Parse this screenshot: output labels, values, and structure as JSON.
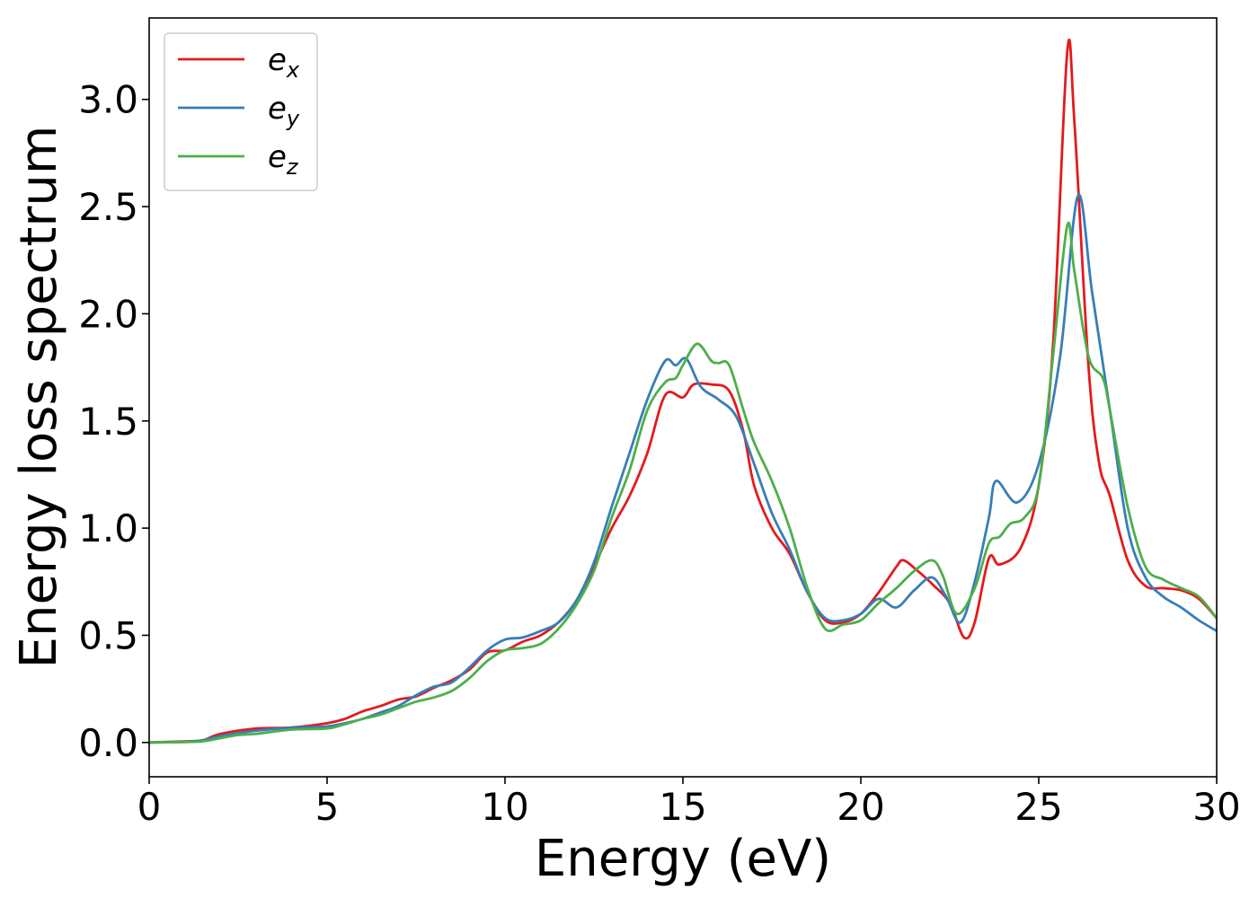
{
  "chart_data": {
    "type": "line",
    "title": "",
    "xlabel": "Energy (eV)",
    "ylabel": "Energy loss spectrum",
    "xlim": [
      0,
      30
    ],
    "ylim": [
      -0.16,
      3.38
    ],
    "xticks": [
      0,
      5,
      10,
      15,
      20,
      25,
      30
    ],
    "xtick_labels": [
      "0",
      "5",
      "10",
      "15",
      "20",
      "25",
      "30"
    ],
    "yticks": [
      0.0,
      0.5,
      1.0,
      1.5,
      2.0,
      2.5,
      3.0
    ],
    "ytick_labels": [
      "0.0",
      "0.5",
      "1.0",
      "1.5",
      "2.0",
      "2.5",
      "3.0"
    ],
    "grid": false,
    "legend_position": "top-left",
    "series": [
      {
        "name": "e_x",
        "legend_base": "e",
        "legend_sub": "x",
        "color": "#e41a1c",
        "points": [
          [
            0,
            0
          ],
          [
            1,
            0.005
          ],
          [
            1.5,
            0.01
          ],
          [
            2,
            0.04
          ],
          [
            3,
            0.065
          ],
          [
            4,
            0.07
          ],
          [
            5,
            0.09
          ],
          [
            5.5,
            0.11
          ],
          [
            6,
            0.145
          ],
          [
            6.5,
            0.17
          ],
          [
            7,
            0.2
          ],
          [
            7.5,
            0.215
          ],
          [
            8,
            0.255
          ],
          [
            8.5,
            0.29
          ],
          [
            9,
            0.34
          ],
          [
            9.5,
            0.42
          ],
          [
            10,
            0.43
          ],
          [
            10.5,
            0.47
          ],
          [
            11,
            0.5
          ],
          [
            11.5,
            0.56
          ],
          [
            12,
            0.66
          ],
          [
            12.5,
            0.82
          ],
          [
            13,
            1.0
          ],
          [
            13.5,
            1.15
          ],
          [
            14,
            1.35
          ],
          [
            14.5,
            1.62
          ],
          [
            15,
            1.61
          ],
          [
            15.3,
            1.67
          ],
          [
            15.8,
            1.67
          ],
          [
            16.3,
            1.64
          ],
          [
            16.7,
            1.45
          ],
          [
            17,
            1.2
          ],
          [
            17.5,
            1.0
          ],
          [
            18,
            0.88
          ],
          [
            18.5,
            0.7
          ],
          [
            19,
            0.57
          ],
          [
            19.5,
            0.56
          ],
          [
            20,
            0.6
          ],
          [
            20.5,
            0.7
          ],
          [
            21,
            0.82
          ],
          [
            21.2,
            0.85
          ],
          [
            21.6,
            0.8
          ],
          [
            22,
            0.74
          ],
          [
            22.5,
            0.65
          ],
          [
            22.9,
            0.49
          ],
          [
            23.2,
            0.56
          ],
          [
            23.6,
            0.86
          ],
          [
            23.9,
            0.83
          ],
          [
            24.5,
            0.91
          ],
          [
            25,
            1.2
          ],
          [
            25.4,
            1.85
          ],
          [
            25.8,
            3.22
          ],
          [
            26,
            2.9
          ],
          [
            26.4,
            1.75
          ],
          [
            26.7,
            1.3
          ],
          [
            27,
            1.15
          ],
          [
            27.5,
            0.85
          ],
          [
            28,
            0.73
          ],
          [
            28.5,
            0.72
          ],
          [
            29,
            0.71
          ],
          [
            29.5,
            0.67
          ],
          [
            30,
            0.58
          ]
        ]
      },
      {
        "name": "e_y",
        "legend_base": "e",
        "legend_sub": "y",
        "color": "#377eb8",
        "points": [
          [
            0,
            0
          ],
          [
            1,
            0.003
          ],
          [
            1.5,
            0.01
          ],
          [
            2,
            0.03
          ],
          [
            3,
            0.055
          ],
          [
            4,
            0.068
          ],
          [
            5,
            0.075
          ],
          [
            5.5,
            0.09
          ],
          [
            6,
            0.11
          ],
          [
            6.5,
            0.14
          ],
          [
            7,
            0.17
          ],
          [
            7.5,
            0.22
          ],
          [
            8,
            0.26
          ],
          [
            8.5,
            0.28
          ],
          [
            9,
            0.35
          ],
          [
            9.5,
            0.43
          ],
          [
            10,
            0.48
          ],
          [
            10.5,
            0.49
          ],
          [
            11,
            0.52
          ],
          [
            11.5,
            0.56
          ],
          [
            12,
            0.66
          ],
          [
            12.5,
            0.84
          ],
          [
            13,
            1.1
          ],
          [
            13.5,
            1.35
          ],
          [
            14,
            1.6
          ],
          [
            14.5,
            1.78
          ],
          [
            14.8,
            1.76
          ],
          [
            15.1,
            1.79
          ],
          [
            15.5,
            1.66
          ],
          [
            16,
            1.6
          ],
          [
            16.5,
            1.52
          ],
          [
            17,
            1.3
          ],
          [
            17.5,
            1.07
          ],
          [
            18,
            0.9
          ],
          [
            18.5,
            0.7
          ],
          [
            19,
            0.58
          ],
          [
            19.5,
            0.57
          ],
          [
            20,
            0.6
          ],
          [
            20.5,
            0.67
          ],
          [
            21,
            0.63
          ],
          [
            21.5,
            0.71
          ],
          [
            22,
            0.77
          ],
          [
            22.4,
            0.68
          ],
          [
            22.8,
            0.56
          ],
          [
            23.2,
            0.75
          ],
          [
            23.6,
            1.05
          ],
          [
            23.8,
            1.22
          ],
          [
            24.4,
            1.12
          ],
          [
            25,
            1.3
          ],
          [
            25.6,
            1.8
          ],
          [
            26.1,
            2.55
          ],
          [
            26.5,
            2.1
          ],
          [
            27,
            1.55
          ],
          [
            27.5,
            1.0
          ],
          [
            28,
            0.77
          ],
          [
            28.5,
            0.68
          ],
          [
            29,
            0.63
          ],
          [
            29.5,
            0.57
          ],
          [
            30,
            0.52
          ]
        ]
      },
      {
        "name": "e_z",
        "legend_base": "e",
        "legend_sub": "z",
        "color": "#4daf4a",
        "points": [
          [
            0,
            0
          ],
          [
            1,
            0.002
          ],
          [
            1.5,
            0.005
          ],
          [
            2,
            0.02
          ],
          [
            2.5,
            0.035
          ],
          [
            3,
            0.04
          ],
          [
            4,
            0.06
          ],
          [
            5,
            0.065
          ],
          [
            5.5,
            0.085
          ],
          [
            6,
            0.11
          ],
          [
            6.5,
            0.13
          ],
          [
            7,
            0.16
          ],
          [
            7.5,
            0.19
          ],
          [
            8,
            0.21
          ],
          [
            8.5,
            0.24
          ],
          [
            9,
            0.3
          ],
          [
            9.5,
            0.38
          ],
          [
            10,
            0.43
          ],
          [
            10.5,
            0.44
          ],
          [
            11,
            0.46
          ],
          [
            11.5,
            0.53
          ],
          [
            12,
            0.64
          ],
          [
            12.5,
            0.8
          ],
          [
            13,
            1.05
          ],
          [
            13.5,
            1.27
          ],
          [
            14,
            1.55
          ],
          [
            14.5,
            1.68
          ],
          [
            14.8,
            1.7
          ],
          [
            15,
            1.76
          ],
          [
            15.4,
            1.86
          ],
          [
            15.8,
            1.78
          ],
          [
            16,
            1.77
          ],
          [
            16.3,
            1.76
          ],
          [
            16.7,
            1.55
          ],
          [
            17,
            1.4
          ],
          [
            17.5,
            1.22
          ],
          [
            18,
            1.0
          ],
          [
            18.5,
            0.72
          ],
          [
            19,
            0.53
          ],
          [
            19.5,
            0.55
          ],
          [
            20,
            0.57
          ],
          [
            20.5,
            0.65
          ],
          [
            21,
            0.72
          ],
          [
            21.5,
            0.8
          ],
          [
            22,
            0.85
          ],
          [
            22.3,
            0.78
          ],
          [
            22.7,
            0.6
          ],
          [
            23.2,
            0.72
          ],
          [
            23.6,
            0.93
          ],
          [
            23.9,
            0.96
          ],
          [
            24.2,
            1.02
          ],
          [
            24.6,
            1.05
          ],
          [
            25,
            1.2
          ],
          [
            25.4,
            1.8
          ],
          [
            25.8,
            2.41
          ],
          [
            26,
            2.2
          ],
          [
            26.4,
            1.8
          ],
          [
            26.8,
            1.7
          ],
          [
            27,
            1.55
          ],
          [
            27.5,
            1.1
          ],
          [
            28,
            0.82
          ],
          [
            28.5,
            0.76
          ],
          [
            29,
            0.72
          ],
          [
            29.5,
            0.68
          ],
          [
            30,
            0.58
          ]
        ]
      }
    ]
  }
}
